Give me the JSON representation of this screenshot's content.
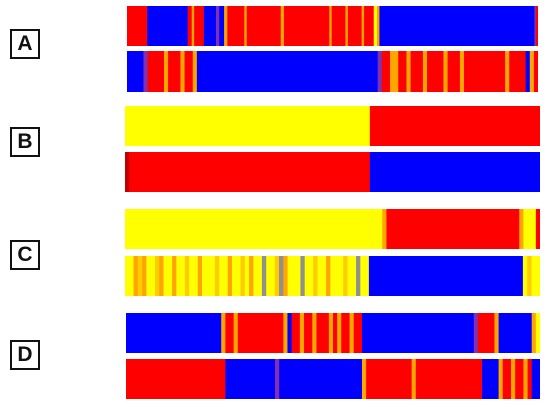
{
  "panels": [
    {
      "label": "A"
    },
    {
      "label": "B"
    },
    {
      "label": "C"
    },
    {
      "label": "D"
    }
  ],
  "colors": {
    "red": "#ff0000",
    "blue": "#0000ff",
    "yellow": "#ffff00",
    "orange": "#ffa500",
    "gold": "#ffcc00",
    "purple": "#8030b0",
    "gray": "#909090",
    "darkred": "#c00000"
  },
  "strips": [
    {
      "panel": "A",
      "row": 1,
      "segments": [
        [
          "red",
          5
        ],
        [
          "blue",
          10
        ],
        [
          "red",
          1
        ],
        [
          "orange",
          0.6
        ],
        [
          "red",
          2.4
        ],
        [
          "blue",
          3
        ],
        [
          "purple",
          0.8
        ],
        [
          "blue",
          1.2
        ],
        [
          "orange",
          0.8
        ],
        [
          "red",
          4.2
        ],
        [
          "orange",
          0.6
        ],
        [
          "red",
          8.4
        ],
        [
          "orange",
          0.8
        ],
        [
          "red",
          11.2
        ],
        [
          "orange",
          0.6
        ],
        [
          "red",
          3.4
        ],
        [
          "orange",
          0.6
        ],
        [
          "red",
          3.4
        ],
        [
          "orange",
          0.6
        ],
        [
          "red",
          2.4
        ],
        [
          "yellow",
          0.8
        ],
        [
          "orange",
          0.6
        ],
        [
          "blue",
          38.3
        ],
        [
          "purple",
          0.4
        ],
        [
          "red",
          0.5
        ]
      ]
    },
    {
      "panel": "A",
      "row": 2,
      "segments": [
        [
          "blue",
          4
        ],
        [
          "purple",
          1
        ],
        [
          "red",
          4
        ],
        [
          "orange",
          1
        ],
        [
          "red",
          3
        ],
        [
          "orange",
          1
        ],
        [
          "red",
          2
        ],
        [
          "orange",
          1
        ],
        [
          "blue",
          44
        ],
        [
          "purple",
          1
        ],
        [
          "red",
          2
        ],
        [
          "orange",
          2
        ],
        [
          "red",
          2
        ],
        [
          "orange",
          1
        ],
        [
          "red",
          3
        ],
        [
          "orange",
          1
        ],
        [
          "red",
          4
        ],
        [
          "orange",
          1
        ],
        [
          "red",
          3
        ],
        [
          "orange",
          1
        ],
        [
          "red",
          10
        ],
        [
          "orange",
          1
        ],
        [
          "red",
          4
        ],
        [
          "blue",
          1
        ],
        [
          "orange",
          1
        ],
        [
          "red",
          1
        ]
      ]
    },
    {
      "panel": "B",
      "row": 1,
      "segments": [
        [
          "yellow",
          59
        ],
        [
          "red",
          41
        ]
      ]
    },
    {
      "panel": "B",
      "row": 2,
      "segments": [
        [
          "darkred",
          1
        ],
        [
          "red",
          58
        ],
        [
          "blue",
          41
        ]
      ]
    },
    {
      "panel": "C",
      "row": 1,
      "segments": [
        [
          "yellow",
          62
        ],
        [
          "orange",
          1
        ],
        [
          "red",
          32
        ],
        [
          "orange",
          1
        ],
        [
          "yellow",
          3
        ],
        [
          "red",
          1
        ]
      ]
    },
    {
      "panel": "C",
      "row": 2,
      "segments": [
        [
          "yellow",
          2
        ],
        [
          "orange",
          1
        ],
        [
          "gold",
          1
        ],
        [
          "orange",
          1
        ],
        [
          "yellow",
          2
        ],
        [
          "gold",
          1
        ],
        [
          "orange",
          1
        ],
        [
          "yellow",
          2
        ],
        [
          "orange",
          1
        ],
        [
          "yellow",
          2
        ],
        [
          "gold",
          1
        ],
        [
          "yellow",
          2
        ],
        [
          "orange",
          1
        ],
        [
          "yellow",
          3
        ],
        [
          "gold",
          1
        ],
        [
          "yellow",
          2
        ],
        [
          "orange",
          1
        ],
        [
          "yellow",
          2
        ],
        [
          "gold",
          1
        ],
        [
          "yellow",
          1
        ],
        [
          "orange",
          1
        ],
        [
          "yellow",
          2
        ],
        [
          "gray",
          1
        ],
        [
          "yellow",
          2
        ],
        [
          "gold",
          1
        ],
        [
          "gray",
          1
        ],
        [
          "orange",
          1
        ],
        [
          "yellow",
          3
        ],
        [
          "gray",
          1
        ],
        [
          "yellow",
          2
        ],
        [
          "gold",
          1
        ],
        [
          "yellow",
          2
        ],
        [
          "orange",
          1
        ],
        [
          "yellow",
          3
        ],
        [
          "gold",
          1
        ],
        [
          "yellow",
          2
        ],
        [
          "gray",
          1
        ],
        [
          "yellow",
          2
        ],
        [
          "blue",
          36
        ],
        [
          "yellow",
          1
        ],
        [
          "gold",
          1
        ],
        [
          "yellow",
          2
        ]
      ]
    },
    {
      "panel": "D",
      "row": 1,
      "segments": [
        [
          "blue",
          23
        ],
        [
          "orange",
          1
        ],
        [
          "red",
          2
        ],
        [
          "orange",
          1
        ],
        [
          "red",
          11
        ],
        [
          "orange",
          1
        ],
        [
          "blue",
          1
        ],
        [
          "red",
          2
        ],
        [
          "orange",
          1
        ],
        [
          "red",
          2
        ],
        [
          "orange",
          1
        ],
        [
          "red",
          3
        ],
        [
          "orange",
          1
        ],
        [
          "red",
          1
        ],
        [
          "orange",
          1
        ],
        [
          "red",
          2
        ],
        [
          "orange",
          1
        ],
        [
          "red",
          2
        ],
        [
          "blue",
          27
        ],
        [
          "purple",
          1
        ],
        [
          "red",
          4
        ],
        [
          "orange",
          1
        ],
        [
          "blue",
          8
        ],
        [
          "orange",
          1
        ],
        [
          "yellow",
          1
        ]
      ]
    },
    {
      "panel": "D",
      "row": 2,
      "segments": [
        [
          "red",
          24
        ],
        [
          "blue",
          12
        ],
        [
          "purple",
          1
        ],
        [
          "blue",
          20
        ],
        [
          "orange",
          1
        ],
        [
          "red",
          11
        ],
        [
          "orange",
          1
        ],
        [
          "red",
          16
        ],
        [
          "blue",
          4
        ],
        [
          "orange",
          1
        ],
        [
          "red",
          2
        ],
        [
          "orange",
          1
        ],
        [
          "red",
          2
        ],
        [
          "orange",
          1
        ],
        [
          "red",
          1
        ],
        [
          "blue",
          2
        ]
      ]
    }
  ]
}
